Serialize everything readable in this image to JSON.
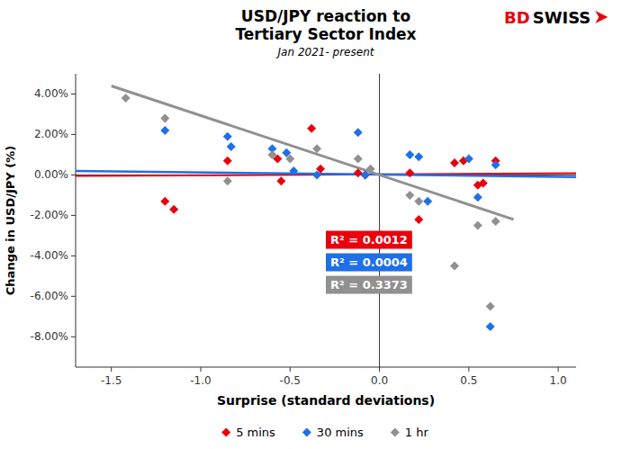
{
  "chart_data": {
    "type": "scatter",
    "title": [
      "USD/JPY reaction to",
      "Tertiary Sector Index"
    ],
    "subtitle": "Jan 2021- present",
    "x_label": "Surprise (standard deviations)",
    "y_label": "Change in USD/JPY (%)",
    "xlim": [
      -1.7,
      1.1
    ],
    "ylim": [
      -0.095,
      0.05
    ],
    "xticks": [
      -1.5,
      {
        "value": -1.0,
        "label": "-1.0"
      },
      -0.5,
      {
        "value": 0.0,
        "label": "0.0"
      },
      0.5,
      {
        "value": 1.0,
        "label": "1.0"
      }
    ],
    "yticks": [
      {
        "value": -0.08,
        "label": "-8.00%"
      },
      {
        "value": -0.06,
        "label": "-6.00%"
      },
      {
        "value": -0.04,
        "label": "-4.00%"
      },
      {
        "value": -0.02,
        "label": "-2.00%"
      },
      {
        "value": 0.0,
        "label": "0.00%"
      },
      {
        "value": 0.02,
        "label": "2.00%"
      },
      {
        "value": 0.04,
        "label": "4.00%"
      }
    ],
    "grid": false,
    "legend": "bottom",
    "reference_lines": {
      "x": [
        0
      ],
      "y": [
        0
      ]
    },
    "series": [
      {
        "name": "5 mins",
        "color": "#E8000D",
        "marker": "diamond",
        "x": [
          -1.2,
          -1.15,
          -0.85,
          -0.57,
          -0.55,
          -0.38,
          -0.33,
          -0.12,
          -0.08,
          0.17,
          0.22,
          0.42,
          0.47,
          0.55,
          0.58,
          0.65
        ],
        "values": [
          -0.013,
          -0.017,
          0.007,
          0.008,
          -0.003,
          0.023,
          0.003,
          0.001,
          0.0,
          0.001,
          -0.022,
          0.006,
          0.007,
          -0.005,
          -0.004,
          0.007
        ],
        "trendline": {
          "x": [
            -1.7,
            1.1
          ],
          "values": [
            -0.0005,
            0.0008
          ]
        }
      },
      {
        "name": "30 mins",
        "color": "#1F6FE8",
        "marker": "diamond",
        "x": [
          -1.2,
          -0.85,
          -0.83,
          -0.6,
          -0.52,
          -0.48,
          -0.35,
          -0.12,
          -0.08,
          0.17,
          0.22,
          0.27,
          0.5,
          0.55,
          0.62,
          0.65
        ],
        "values": [
          0.022,
          0.019,
          0.014,
          0.013,
          0.011,
          0.002,
          0.0,
          0.021,
          0.0,
          0.01,
          0.009,
          -0.013,
          0.008,
          -0.011,
          -0.075,
          0.005
        ],
        "trendline": {
          "x": [
            -1.7,
            1.1
          ],
          "values": [
            0.002,
            -0.001
          ]
        }
      },
      {
        "name": "1 hr",
        "color": "#909090",
        "marker": "diamond",
        "x": [
          -1.42,
          -1.2,
          -0.85,
          -0.6,
          -0.5,
          -0.35,
          -0.12,
          -0.05,
          0.17,
          0.22,
          0.42,
          0.55,
          0.62,
          0.65
        ],
        "values": [
          0.038,
          0.028,
          -0.003,
          0.01,
          0.008,
          0.013,
          0.008,
          0.003,
          -0.01,
          -0.013,
          -0.045,
          -0.025,
          -0.065,
          -0.023
        ],
        "trendline": {
          "x": [
            -1.5,
            0.75
          ],
          "values": [
            0.044,
            -0.022
          ]
        }
      }
    ],
    "annotations": [
      {
        "text": "R² = 0.0012",
        "color": "#E8000D"
      },
      {
        "text": "R² = 0.0004",
        "color": "#1F6FE8"
      },
      {
        "text": "R² = 0.3373",
        "color": "#909090"
      }
    ],
    "logo": [
      {
        "text": "BD",
        "color": "#E8000D"
      },
      {
        "text": "SWISS",
        "color": "#000000"
      }
    ]
  }
}
